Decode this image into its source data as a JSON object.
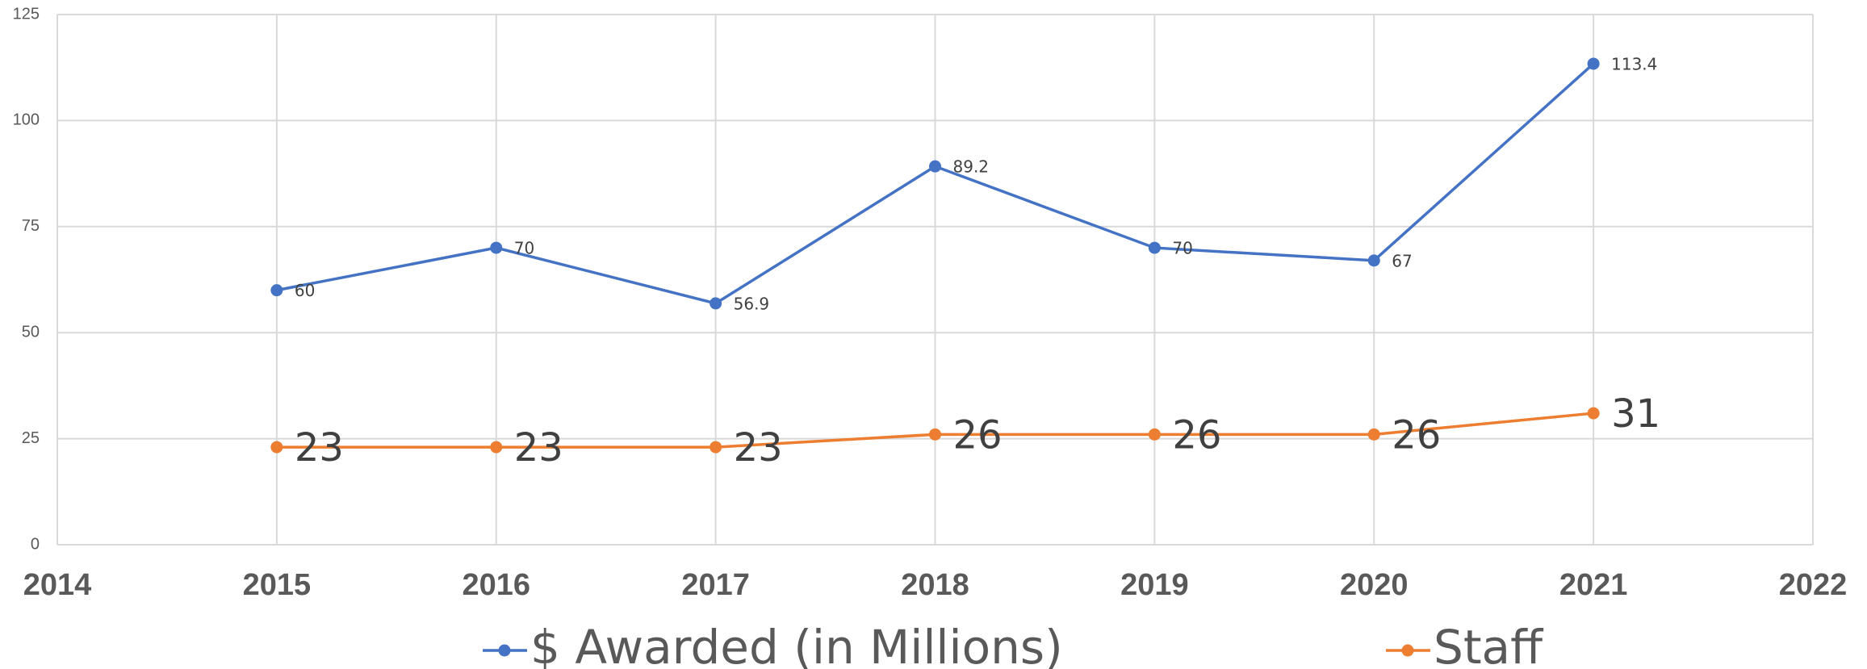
{
  "chart_data": {
    "type": "line",
    "x": [
      2015,
      2016,
      2017,
      2018,
      2019,
      2020,
      2021
    ],
    "series": [
      {
        "name": "$ Awarded (in Millions)",
        "color": "#4472c4",
        "values": [
          60,
          70,
          56.9,
          89.2,
          70,
          67,
          113.4
        ]
      },
      {
        "name": "Staff",
        "color": "#ed7d31",
        "values": [
          23,
          23,
          23,
          26,
          26,
          26,
          31
        ]
      }
    ],
    "xlim": [
      2014,
      2022
    ],
    "xticks": [
      2014,
      2015,
      2016,
      2017,
      2018,
      2019,
      2020,
      2021,
      2022
    ],
    "ylim": [
      0,
      125
    ],
    "yticks": [
      0,
      25,
      50,
      75,
      100,
      125
    ],
    "grid": true,
    "legend": "bottom"
  }
}
